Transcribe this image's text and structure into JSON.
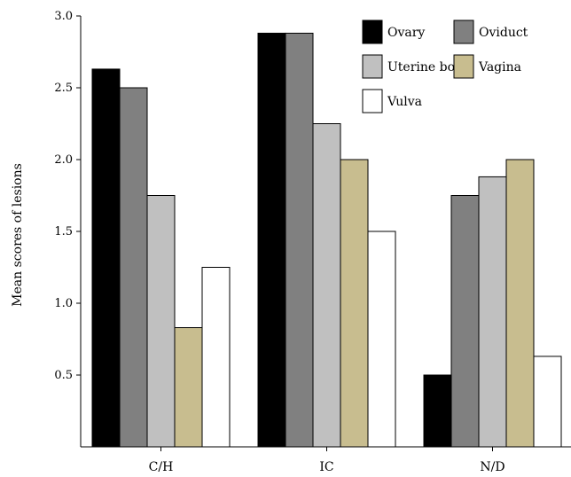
{
  "chart_data": {
    "type": "bar",
    "title": "",
    "xlabel": "",
    "ylabel": "Mean scores of lesions",
    "ylim": [
      0,
      3.0
    ],
    "yticks": [
      "0.5",
      "1.0",
      "1.5",
      "2.0",
      "2.5",
      "3.0"
    ],
    "categories": [
      "C/H",
      "IC",
      "N/D"
    ],
    "series": [
      {
        "name": "Ovary",
        "color": "#000000",
        "values": [
          2.63,
          2.88,
          0.5
        ]
      },
      {
        "name": "Oviduct",
        "color": "#808080",
        "values": [
          2.5,
          2.88,
          1.75
        ]
      },
      {
        "name": "Uterine body",
        "color": "#c0c0c0",
        "values": [
          1.75,
          2.25,
          1.88
        ]
      },
      {
        "name": "Vagina",
        "color": "#c8bd8f",
        "values": [
          0.83,
          2.0,
          2.0
        ]
      },
      {
        "name": "Vulva",
        "color": "#ffffff",
        "values": [
          1.25,
          1.5,
          0.63
        ]
      }
    ],
    "legend_position": "top-right",
    "grid": false
  }
}
